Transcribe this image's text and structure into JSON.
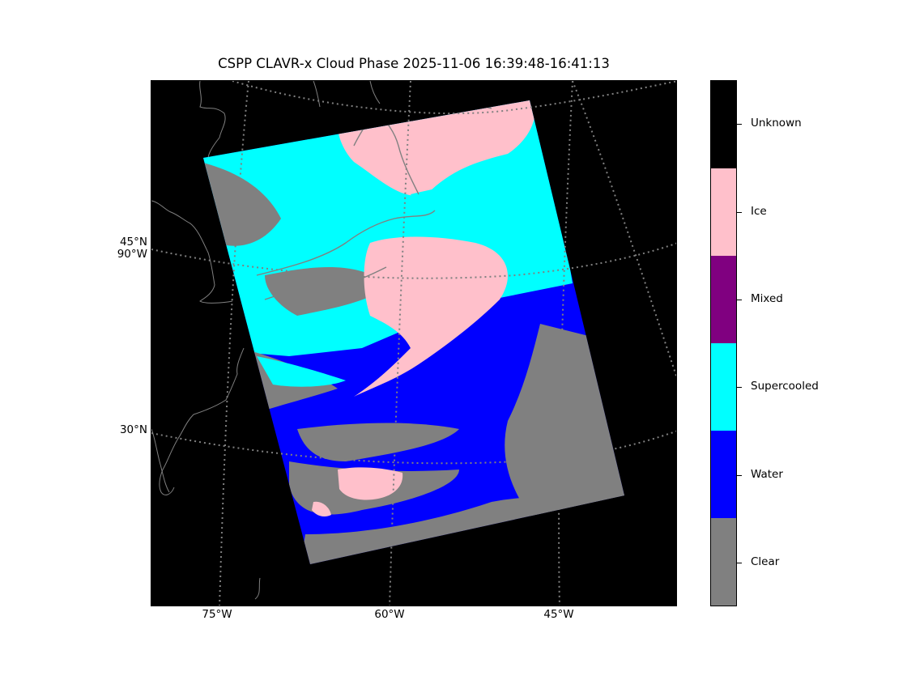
{
  "title": "CSPP CLAVR-x Cloud Phase 2025-11-06 16:39:48-16:41:13",
  "map": {
    "lat_labels": [
      "45°N\n90°W",
      "30°N"
    ],
    "lon_labels": [
      "75°W",
      "60°W",
      "45°W"
    ],
    "background_color": "#000000",
    "coastline_color": "#808080",
    "gridline_style": "dotted"
  },
  "colorbar": {
    "categories": [
      {
        "label": "Unknown",
        "color": "#000000"
      },
      {
        "label": "Ice",
        "color": "#ffc0cb"
      },
      {
        "label": "Mixed",
        "color": "#800080"
      },
      {
        "label": "Supercooled",
        "color": "#00ffff"
      },
      {
        "label": "Water",
        "color": "#0000ff"
      },
      {
        "label": "Clear",
        "color": "#808080"
      }
    ]
  }
}
